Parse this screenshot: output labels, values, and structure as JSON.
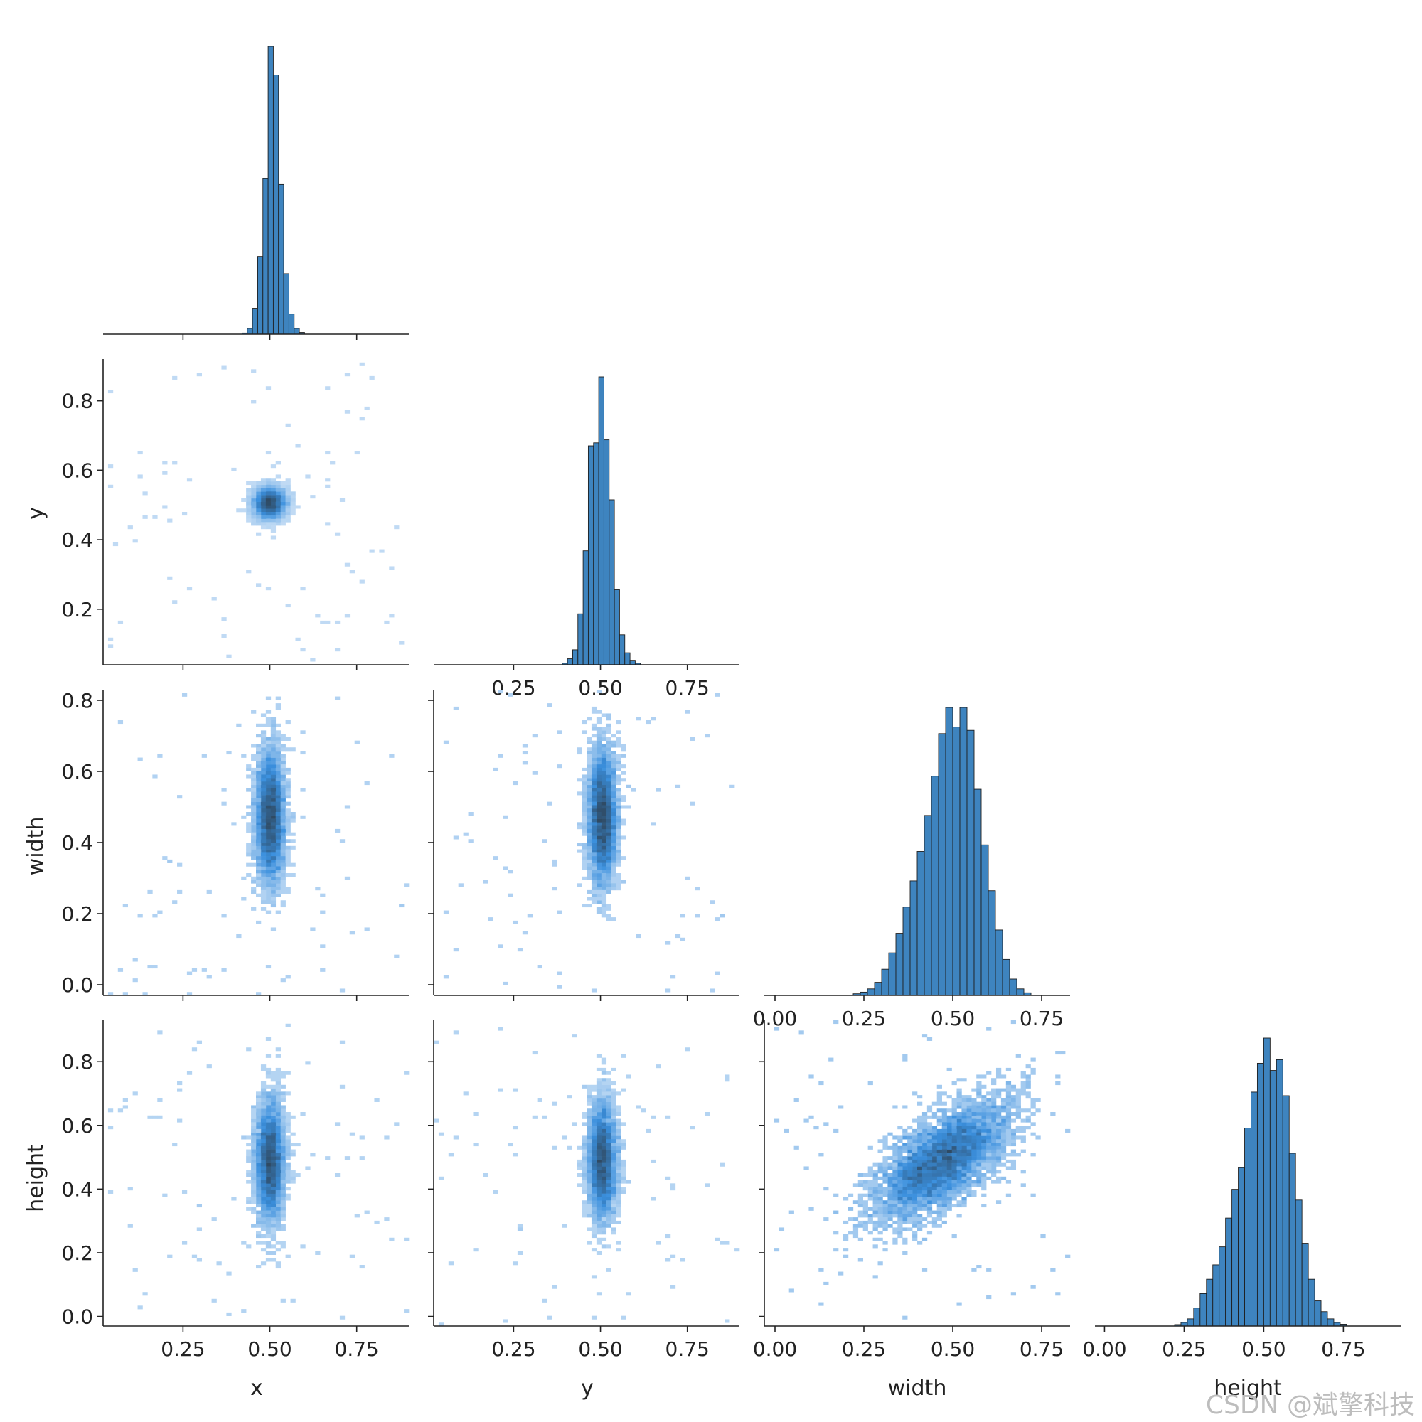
{
  "colors": {
    "hist": "#3e84bf",
    "heat_light": "#cfe3f7",
    "heat_mid": "#3a8fdd",
    "heat_dark": "#2f4a63",
    "watermark": "#bdbdbd"
  },
  "variables": [
    "x",
    "y",
    "width",
    "height"
  ],
  "watermark": "CSDN @斌擎科技",
  "chart_data": [
    {
      "id": "hist-x",
      "type": "bar",
      "variable": "x",
      "xlim": [
        0.02,
        0.9
      ],
      "bins": [
        0.42,
        0.435,
        0.45,
        0.465,
        0.48,
        0.495,
        0.51,
        0.525,
        0.54,
        0.555,
        0.57,
        0.585
      ],
      "bin_width": 0.015,
      "values": [
        0.004,
        0.02,
        0.09,
        0.27,
        0.54,
        1.0,
        0.9,
        0.52,
        0.21,
        0.07,
        0.02,
        0.006
      ]
    },
    {
      "id": "hist-y",
      "type": "bar",
      "variable": "y",
      "xlim": [
        0.02,
        0.9
      ],
      "bins": [
        0.39,
        0.405,
        0.42,
        0.435,
        0.45,
        0.465,
        0.48,
        0.495,
        0.51,
        0.525,
        0.54,
        0.555,
        0.57,
        0.585,
        0.6
      ],
      "bin_width": 0.015,
      "values": [
        0.005,
        0.02,
        0.05,
        0.17,
        0.38,
        0.73,
        0.74,
        0.96,
        0.75,
        0.55,
        0.25,
        0.1,
        0.04,
        0.015,
        0.005
      ],
      "xticks": [
        "0.25",
        "0.50",
        "0.75"
      ]
    },
    {
      "id": "hist-width",
      "type": "bar",
      "variable": "width",
      "xlim": [
        -0.03,
        0.83
      ],
      "bins": [
        0.22,
        0.24,
        0.26,
        0.28,
        0.3,
        0.32,
        0.34,
        0.36,
        0.38,
        0.4,
        0.42,
        0.44,
        0.46,
        0.48,
        0.5,
        0.52,
        0.54,
        0.56,
        0.58,
        0.6,
        0.62,
        0.64,
        0.66,
        0.68,
        0.7
      ],
      "bin_width": 0.02,
      "values": [
        0.005,
        0.01,
        0.02,
        0.04,
        0.08,
        0.13,
        0.19,
        0.27,
        0.35,
        0.44,
        0.55,
        0.67,
        0.8,
        0.88,
        0.82,
        0.88,
        0.81,
        0.63,
        0.46,
        0.32,
        0.2,
        0.11,
        0.05,
        0.02,
        0.008
      ],
      "xticks": [
        "0.00",
        "0.25",
        "0.50",
        "0.75"
      ]
    },
    {
      "id": "hist-height",
      "type": "bar",
      "variable": "height",
      "xlim": [
        -0.03,
        0.93
      ],
      "bins": [
        0.22,
        0.24,
        0.26,
        0.28,
        0.3,
        0.32,
        0.34,
        0.36,
        0.38,
        0.4,
        0.42,
        0.44,
        0.46,
        0.48,
        0.5,
        0.52,
        0.54,
        0.56,
        0.58,
        0.6,
        0.62,
        0.64,
        0.66,
        0.68,
        0.7,
        0.72,
        0.74
      ],
      "bin_width": 0.02,
      "values": [
        0.004,
        0.01,
        0.02,
        0.05,
        0.09,
        0.13,
        0.17,
        0.22,
        0.3,
        0.38,
        0.44,
        0.55,
        0.65,
        0.73,
        0.8,
        0.71,
        0.74,
        0.64,
        0.48,
        0.35,
        0.23,
        0.13,
        0.07,
        0.04,
        0.02,
        0.01,
        0.005
      ],
      "xticks": [
        "0.00",
        "0.25",
        "0.50",
        "0.75"
      ]
    },
    {
      "id": "heat-x-y",
      "type": "heatmap",
      "xvar": "x",
      "yvar": "y",
      "xlim": [
        0.02,
        0.9
      ],
      "ylim": [
        0.04,
        0.92
      ],
      "center": [
        0.5,
        0.505
      ],
      "sd": [
        0.022,
        0.022
      ],
      "corr": 0,
      "yticks": [
        "0.2",
        "0.4",
        "0.6",
        "0.8"
      ],
      "ytick_values": [
        0.2,
        0.4,
        0.6,
        0.8
      ]
    },
    {
      "id": "heat-x-width",
      "type": "heatmap",
      "xvar": "x",
      "yvar": "width",
      "xlim": [
        0.02,
        0.9
      ],
      "ylim": [
        -0.03,
        0.83
      ],
      "center": [
        0.5,
        0.47
      ],
      "sd": [
        0.02,
        0.09
      ],
      "corr": 0,
      "yticks": [
        "0.0",
        "0.2",
        "0.4",
        "0.6",
        "0.8"
      ],
      "ytick_values": [
        0.0,
        0.2,
        0.4,
        0.6,
        0.8
      ]
    },
    {
      "id": "heat-y-width",
      "type": "heatmap",
      "xvar": "y",
      "yvar": "width",
      "xlim": [
        0.02,
        0.9
      ],
      "ylim": [
        -0.03,
        0.83
      ],
      "center": [
        0.505,
        0.47
      ],
      "sd": [
        0.02,
        0.09
      ],
      "corr": 0
    },
    {
      "id": "heat-x-height",
      "type": "heatmap",
      "xvar": "x",
      "yvar": "height",
      "xlim": [
        0.02,
        0.9
      ],
      "ylim": [
        -0.03,
        0.93
      ],
      "center": [
        0.5,
        0.49
      ],
      "sd": [
        0.02,
        0.09
      ],
      "corr": 0,
      "xticks": [
        "0.25",
        "0.50",
        "0.75"
      ],
      "yticks": [
        "0.0",
        "0.2",
        "0.4",
        "0.6",
        "0.8"
      ],
      "ytick_values": [
        0.0,
        0.2,
        0.4,
        0.6,
        0.8
      ]
    },
    {
      "id": "heat-y-height",
      "type": "heatmap",
      "xvar": "y",
      "yvar": "height",
      "xlim": [
        0.02,
        0.9
      ],
      "ylim": [
        -0.03,
        0.93
      ],
      "center": [
        0.505,
        0.49
      ],
      "sd": [
        0.02,
        0.09
      ],
      "corr": 0,
      "xticks": [
        "0.25",
        "0.50",
        "0.75"
      ]
    },
    {
      "id": "heat-width-height",
      "type": "heatmap",
      "xvar": "width",
      "yvar": "height",
      "xlim": [
        -0.03,
        0.83
      ],
      "ylim": [
        -0.03,
        0.93
      ],
      "center": [
        0.47,
        0.49
      ],
      "sd": [
        0.09,
        0.09
      ],
      "corr": 0.65,
      "xticks": [
        "0.00",
        "0.25",
        "0.50",
        "0.75"
      ]
    }
  ],
  "tick_values": [
    0.0,
    0.25,
    0.5,
    0.75
  ]
}
